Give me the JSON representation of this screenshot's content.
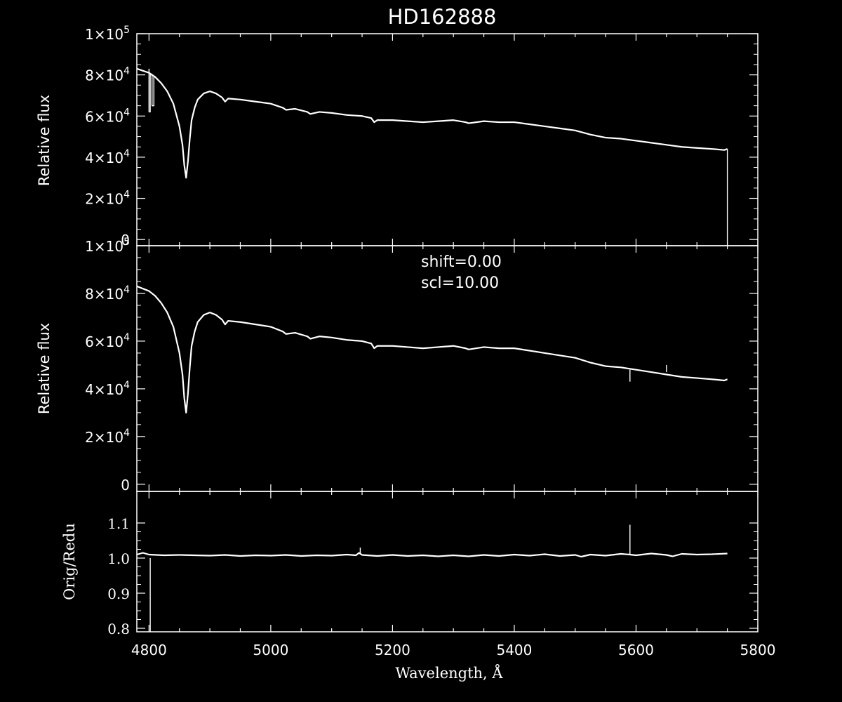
{
  "chart_data": [
    {
      "type": "line",
      "title": "HD162888",
      "xlabel": "",
      "ylabel": "Relative flux",
      "xlim": [
        4780,
        5800
      ],
      "ylim": [
        -3000,
        100000
      ],
      "y_ticks": [
        {
          "value": 0,
          "label": "0",
          "exp": ""
        },
        {
          "value": 20000,
          "label": "2×10",
          "exp": "4"
        },
        {
          "value": 40000,
          "label": "4×10",
          "exp": "4"
        },
        {
          "value": 60000,
          "label": "6×10",
          "exp": "4"
        },
        {
          "value": 80000,
          "label": "8×10",
          "exp": "4"
        },
        {
          "value": 100000,
          "label": "1×10",
          "exp": "5"
        }
      ],
      "series": [
        {
          "x": [
            4780,
            4790,
            4800,
            4810,
            4820,
            4830,
            4840,
            4850,
            4855,
            4858,
            4861,
            4864,
            4867,
            4870,
            4875,
            4880,
            4890,
            4900,
            4910,
            4920,
            4925,
            4930,
            4950,
            4975,
            5000,
            5020,
            5025,
            5040,
            5060,
            5065,
            5080,
            5100,
            5125,
            5150,
            5165,
            5170,
            5175,
            5200,
            5225,
            5250,
            5275,
            5300,
            5320,
            5325,
            5350,
            5375,
            5400,
            5425,
            5450,
            5475,
            5500,
            5525,
            5550,
            5575,
            5600,
            5625,
            5650,
            5675,
            5700,
            5725,
            5745,
            5750
          ],
          "y": [
            83000,
            82000,
            81000,
            79000,
            76000,
            72000,
            66000,
            55000,
            46000,
            36000,
            30000,
            38000,
            49000,
            58000,
            64000,
            68000,
            71000,
            72000,
            71000,
            69000,
            67000,
            68500,
            68000,
            67000,
            66000,
            64000,
            63000,
            63500,
            62000,
            61000,
            62000,
            61500,
            60500,
            60000,
            59000,
            57000,
            58000,
            58000,
            57500,
            57000,
            57500,
            58000,
            57000,
            56500,
            57500,
            57000,
            57000,
            56000,
            55000,
            54000,
            53000,
            51000,
            49500,
            49000,
            48000,
            47000,
            46000,
            45000,
            44500,
            44000,
            43500,
            44000
          ]
        },
        {
          "x": [
            4800,
            4800,
            4802,
            4802,
            4805,
            4805,
            4808,
            4808
          ],
          "y": [
            83000,
            62000,
            62000,
            80000,
            80000,
            65000,
            65000,
            79000
          ]
        },
        {
          "x": [
            5750,
            5750
          ],
          "y": [
            44000,
            -3000
          ]
        }
      ]
    },
    {
      "type": "line",
      "title": "",
      "xlabel": "",
      "ylabel": "Relative flux",
      "xlim": [
        4780,
        5800
      ],
      "ylim": [
        -3000,
        100000
      ],
      "annotations": [
        "shift=0.00",
        "scl=10.00"
      ],
      "y_ticks": [
        {
          "value": 0,
          "label": "0",
          "exp": ""
        },
        {
          "value": 20000,
          "label": "2×10",
          "exp": "4"
        },
        {
          "value": 40000,
          "label": "4×10",
          "exp": "4"
        },
        {
          "value": 60000,
          "label": "6×10",
          "exp": "4"
        },
        {
          "value": 80000,
          "label": "8×10",
          "exp": "4"
        },
        {
          "value": 100000,
          "label": "1×10",
          "exp": "5"
        }
      ],
      "series": [
        {
          "x": [
            4780,
            4790,
            4800,
            4810,
            4820,
            4830,
            4840,
            4850,
            4855,
            4858,
            4861,
            4864,
            4867,
            4870,
            4875,
            4880,
            4890,
            4900,
            4910,
            4920,
            4925,
            4930,
            4950,
            4975,
            5000,
            5020,
            5025,
            5040,
            5060,
            5065,
            5080,
            5100,
            5125,
            5150,
            5165,
            5170,
            5175,
            5200,
            5225,
            5250,
            5275,
            5300,
            5320,
            5325,
            5350,
            5375,
            5400,
            5425,
            5450,
            5475,
            5500,
            5525,
            5550,
            5575,
            5600,
            5625,
            5650,
            5675,
            5700,
            5725,
            5745,
            5750
          ],
          "y": [
            83000,
            82000,
            81000,
            79000,
            76000,
            72000,
            66000,
            55000,
            46000,
            36000,
            30000,
            38000,
            49000,
            58000,
            64000,
            68000,
            71000,
            72000,
            71000,
            69000,
            67000,
            68500,
            68000,
            67000,
            66000,
            64000,
            63000,
            63500,
            62000,
            61000,
            62000,
            61500,
            60500,
            60000,
            59000,
            57000,
            58000,
            58000,
            57500,
            57000,
            57500,
            58000,
            57000,
            56500,
            57500,
            57000,
            57000,
            56000,
            55000,
            54000,
            53000,
            51000,
            49500,
            49000,
            48000,
            47000,
            46000,
            45000,
            44500,
            44000,
            43500,
            44000
          ]
        },
        {
          "x": [
            5590,
            5590
          ],
          "y": [
            48000,
            43000
          ]
        },
        {
          "x": [
            5650,
            5650
          ],
          "y": [
            47000,
            50000
          ]
        }
      ]
    },
    {
      "type": "line",
      "title": "",
      "xlabel": "Wavelength, Å",
      "ylabel": "Orig/Redu",
      "xlim": [
        4780,
        5800
      ],
      "ylim": [
        0.79,
        1.19
      ],
      "x_ticks": [
        4800,
        5000,
        5200,
        5400,
        5600,
        5800
      ],
      "y_ticks": [
        {
          "value": 0.8,
          "label": "0.8"
        },
        {
          "value": 0.9,
          "label": "0.9"
        },
        {
          "value": 1.0,
          "label": "1.0"
        },
        {
          "value": 1.1,
          "label": "1.1"
        }
      ],
      "series": [
        {
          "x": [
            4780,
            4790,
            4800,
            4825,
            4850,
            4875,
            4900,
            4925,
            4950,
            4975,
            5000,
            5025,
            5050,
            5075,
            5100,
            5125,
            5140,
            5145,
            5150,
            5175,
            5200,
            5225,
            5250,
            5275,
            5300,
            5325,
            5350,
            5375,
            5400,
            5425,
            5450,
            5475,
            5500,
            5510,
            5525,
            5550,
            5575,
            5590,
            5600,
            5625,
            5650,
            5660,
            5675,
            5700,
            5725,
            5750
          ],
          "y": [
            1.01,
            1.015,
            1.01,
            1.008,
            1.009,
            1.008,
            1.007,
            1.009,
            1.006,
            1.008,
            1.007,
            1.009,
            1.006,
            1.008,
            1.007,
            1.01,
            1.008,
            1.015,
            1.009,
            1.006,
            1.009,
            1.006,
            1.008,
            1.005,
            1.008,
            1.005,
            1.009,
            1.006,
            1.01,
            1.007,
            1.011,
            1.006,
            1.009,
            1.004,
            1.01,
            1.007,
            1.012,
            1.01,
            1.008,
            1.013,
            1.009,
            1.005,
            1.012,
            1.01,
            1.011,
            1.013
          ]
        },
        {
          "x": [
            4802,
            4802
          ],
          "y": [
            1.0,
            0.79
          ]
        },
        {
          "x": [
            5590,
            5590
          ],
          "y": [
            1.01,
            1.095
          ]
        },
        {
          "x": [
            5147,
            5147
          ],
          "y": [
            1.01,
            1.03
          ]
        }
      ]
    }
  ]
}
